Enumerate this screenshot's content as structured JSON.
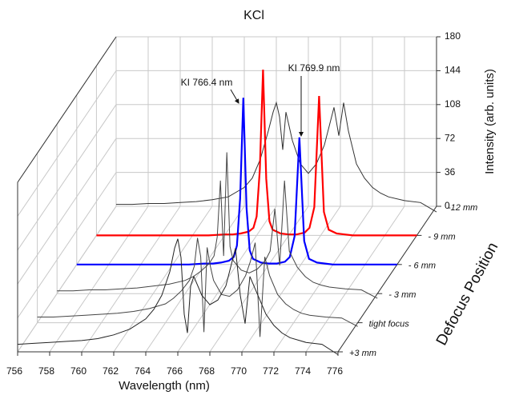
{
  "chart_data": {
    "type": "line",
    "title": "KCl",
    "x_label": "Wavelength (nm)",
    "y_label": "Intensity (arb. units)",
    "depth_label": "Defocus Position",
    "annotations": [
      "KI 766.4 nm",
      "KI 769.9 nm"
    ],
    "xlim": [
      756,
      776
    ],
    "xticks": [
      756,
      758,
      760,
      762,
      764,
      766,
      768,
      770,
      772,
      774,
      776
    ],
    "ylim": [
      0,
      180
    ],
    "yticks": [
      0,
      36,
      72,
      108,
      144,
      180
    ],
    "grid": true,
    "x": [
      756,
      757,
      758,
      759,
      760,
      761,
      762,
      763,
      764,
      764.5,
      765,
      765.5,
      765.8,
      766,
      766.2,
      766.4,
      766.6,
      766.8,
      767,
      767.5,
      768,
      768.5,
      769,
      769.3,
      769.6,
      769.9,
      770.2,
      770.5,
      771,
      771.5,
      772,
      772.5,
      773,
      774,
      775,
      776
    ],
    "series": [
      {
        "name": "-12 mm",
        "color": "#333333",
        "values": [
          2,
          2,
          3,
          3,
          4,
          5,
          7,
          10,
          20,
          30,
          50,
          80,
          100,
          110,
          95,
          60,
          100,
          85,
          70,
          45,
          35,
          45,
          65,
          85,
          105,
          75,
          110,
          80,
          45,
          30,
          20,
          14,
          10,
          6,
          4,
          -6
        ]
      },
      {
        "name": "- 9 mm",
        "color": "#ff0000",
        "values": [
          0,
          0,
          0,
          0,
          0,
          0,
          0,
          0,
          1,
          1,
          2,
          4,
          8,
          20,
          70,
          176,
          60,
          15,
          6,
          2,
          1,
          1,
          3,
          8,
          30,
          148,
          25,
          6,
          2,
          1,
          0,
          0,
          0,
          0,
          0,
          0
        ]
      },
      {
        "name": "- 6 mm",
        "color": "#0000ff",
        "values": [
          0,
          0,
          0,
          0,
          0,
          0,
          0,
          0,
          1,
          1,
          2,
          4,
          8,
          20,
          70,
          177,
          60,
          15,
          6,
          2,
          1,
          1,
          3,
          8,
          30,
          135,
          25,
          6,
          2,
          1,
          0,
          0,
          0,
          0,
          0,
          0
        ]
      },
      {
        "name": "- 3 mm",
        "color": "#444444",
        "values": [
          3,
          3,
          4,
          4,
          5,
          6,
          8,
          10,
          14,
          18,
          24,
          32,
          40,
          60,
          120,
          40,
          150,
          50,
          35,
          25,
          22,
          26,
          35,
          45,
          90,
          30,
          120,
          45,
          28,
          18,
          12,
          9,
          7,
          5,
          4,
          -5
        ]
      },
      {
        "name": "tight focus",
        "color": "#444444",
        "values": [
          6,
          6,
          7,
          8,
          9,
          10,
          12,
          15,
          20,
          26,
          34,
          45,
          60,
          90,
          70,
          -10,
          80,
          60,
          45,
          30,
          28,
          35,
          50,
          65,
          85,
          -15,
          70,
          50,
          30,
          20,
          14,
          10,
          8,
          6,
          5,
          -4
        ]
      },
      {
        "name": "+3 mm",
        "color": "#222222",
        "values": [
          8,
          9,
          10,
          11,
          12,
          14,
          18,
          24,
          35,
          45,
          60,
          85,
          110,
          120,
          100,
          40,
          20,
          70,
          80,
          60,
          50,
          55,
          70,
          90,
          110,
          60,
          30,
          80,
          60,
          40,
          28,
          20,
          15,
          10,
          8,
          -3
        ]
      }
    ]
  }
}
